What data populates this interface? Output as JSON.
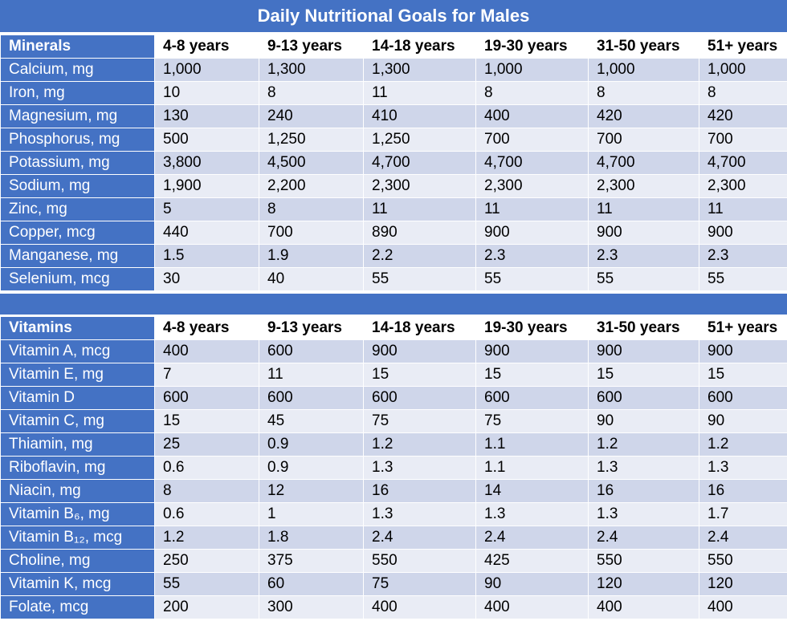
{
  "title": "Daily Nutritional Goals for Males",
  "age_groups": [
    "4-8 years",
    "9-13 years",
    "14-18 years",
    "19-30 years",
    "31-50 years",
    "51+ years"
  ],
  "minerals": {
    "header": "Minerals",
    "rows": [
      {
        "label": "Calcium, mg",
        "values": [
          "1,000",
          "1,300",
          "1,300",
          "1,000",
          "1,000",
          "1,000"
        ]
      },
      {
        "label": "Iron, mg",
        "values": [
          "10",
          "8",
          "11",
          "8",
          "8",
          "8"
        ]
      },
      {
        "label": "Magnesium, mg",
        "values": [
          "130",
          "240",
          "410",
          "400",
          "420",
          "420"
        ]
      },
      {
        "label": "Phosphorus, mg",
        "values": [
          "500",
          "1,250",
          "1,250",
          "700",
          "700",
          "700"
        ]
      },
      {
        "label": "Potassium, mg",
        "values": [
          "3,800",
          "4,500",
          "4,700",
          "4,700",
          "4,700",
          "4,700"
        ]
      },
      {
        "label": "Sodium, mg",
        "values": [
          "1,900",
          "2,200",
          "2,300",
          "2,300",
          "2,300",
          "2,300"
        ]
      },
      {
        "label": "Zinc, mg",
        "values": [
          "5",
          "8",
          "11",
          "11",
          "11",
          "11"
        ]
      },
      {
        "label": "Copper, mcg",
        "values": [
          "440",
          "700",
          "890",
          "900",
          "900",
          "900"
        ]
      },
      {
        "label": "Manganese, mg",
        "values": [
          "1.5",
          "1.9",
          "2.2",
          "2.3",
          "2.3",
          "2.3"
        ]
      },
      {
        "label": "Selenium, mcg",
        "values": [
          "30",
          "40",
          "55",
          "55",
          "55",
          "55"
        ]
      }
    ]
  },
  "vitamins": {
    "header": "Vitamins",
    "rows": [
      {
        "label": "Vitamin A, mcg",
        "values": [
          "400",
          "600",
          "900",
          "900",
          "900",
          "900"
        ]
      },
      {
        "label": "Vitamin E, mg",
        "values": [
          "7",
          "11",
          "15",
          "15",
          "15",
          "15"
        ]
      },
      {
        "label": "Vitamin D",
        "values": [
          "600",
          "600",
          "600",
          "600",
          "600",
          "600"
        ]
      },
      {
        "label": "Vitamin C, mg",
        "values": [
          "15",
          "45",
          "75",
          "75",
          "90",
          "90"
        ]
      },
      {
        "label": "Thiamin, mg",
        "values": [
          "25",
          "0.9",
          "1.2",
          "1.1",
          "1.2",
          "1.2"
        ]
      },
      {
        "label": "Riboflavin, mg",
        "values": [
          "0.6",
          "0.9",
          "1.3",
          "1.1",
          "1.3",
          "1.3"
        ]
      },
      {
        "label": "Niacin, mg",
        "values": [
          "8",
          "12",
          "16",
          "14",
          "16",
          "16"
        ]
      },
      {
        "label": "Vitamin B₆, mg",
        "values": [
          "0.6",
          "1",
          "1.3",
          "1.3",
          "1.3",
          "1.7"
        ]
      },
      {
        "label": "Vitamin B₁₂, mcg",
        "values": [
          "1.2",
          "1.8",
          "2.4",
          "2.4",
          "2.4",
          "2.4"
        ]
      },
      {
        "label": "Choline, mg",
        "values": [
          "250",
          "375",
          "550",
          "425",
          "550",
          "550"
        ]
      },
      {
        "label": "Vitamin K, mcg",
        "values": [
          "55",
          "60",
          "75",
          "90",
          "120",
          "120"
        ]
      },
      {
        "label": "Folate, mcg",
        "values": [
          "200",
          "300",
          "400",
          "400",
          "400",
          "400"
        ]
      }
    ]
  }
}
